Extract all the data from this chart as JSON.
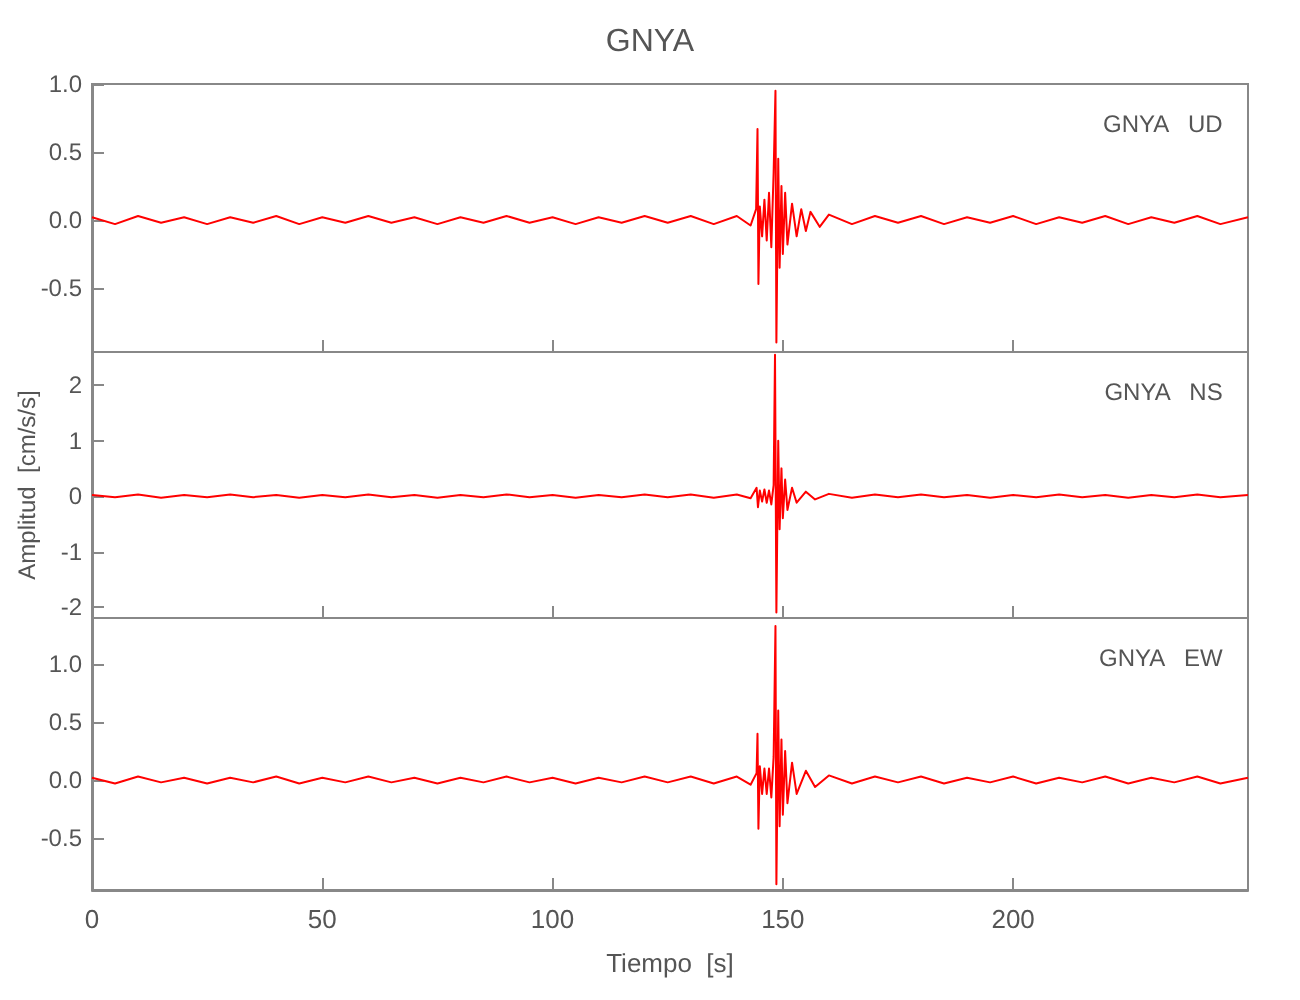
{
  "chart_data": [
    {
      "type": "line",
      "title": "GNYA",
      "annotations": [
        "GNYA   UD"
      ],
      "tick_labels": "y",
      "grid": false,
      "marker": "none",
      "line_style": "solid",
      "xlim": [
        0,
        251
      ],
      "xticks": [
        0,
        50,
        100,
        150,
        200
      ],
      "ylim": [
        -0.97,
        1.0
      ],
      "yticks": [
        {
          "value": -0.5,
          "label": "-0.5"
        },
        {
          "value": 0,
          "label": "0.0"
        },
        {
          "value": 0.5,
          "label": "0.5"
        },
        {
          "value": 1,
          "label": "1.0"
        }
      ],
      "series": [
        {
          "color": "#ff0000",
          "x": [
            0,
            5,
            10,
            15,
            20,
            25,
            30,
            35,
            40,
            45,
            50,
            55,
            60,
            65,
            70,
            75,
            80,
            85,
            90,
            95,
            100,
            105,
            110,
            115,
            120,
            125,
            130,
            135,
            140,
            143,
            144.2,
            144.5,
            144.7,
            145,
            145.5,
            146,
            146.5,
            147,
            147.5,
            148,
            148.4,
            148.6,
            149,
            149.3,
            149.7,
            150,
            150.5,
            151,
            152,
            153,
            154,
            155,
            156,
            158,
            160,
            165,
            170,
            175,
            180,
            185,
            190,
            195,
            200,
            205,
            210,
            215,
            220,
            225,
            230,
            235,
            240,
            245,
            251
          ],
          "values": [
            0.02,
            -0.03,
            0.03,
            -0.02,
            0.02,
            -0.03,
            0.02,
            -0.02,
            0.03,
            -0.03,
            0.02,
            -0.02,
            0.03,
            -0.02,
            0.02,
            -0.03,
            0.02,
            -0.02,
            0.03,
            -0.02,
            0.02,
            -0.03,
            0.02,
            -0.02,
            0.03,
            -0.02,
            0.03,
            -0.03,
            0.03,
            -0.04,
            0.08,
            0.67,
            -0.47,
            0.1,
            -0.12,
            0.15,
            -0.15,
            0.2,
            -0.2,
            0.35,
            0.95,
            -0.9,
            0.45,
            -0.35,
            0.25,
            -0.25,
            0.2,
            -0.18,
            0.12,
            -0.12,
            0.08,
            -0.08,
            0.06,
            -0.05,
            0.04,
            -0.03,
            0.03,
            -0.02,
            0.03,
            -0.03,
            0.02,
            -0.02,
            0.03,
            -0.03,
            0.02,
            -0.02,
            0.03,
            -0.03,
            0.02,
            -0.02,
            0.03,
            -0.03,
            0.02
          ]
        }
      ]
    },
    {
      "type": "line",
      "ylabel": "Amplitud  [cm/s/s]",
      "annotations": [
        "GNYA   NS"
      ],
      "tick_labels": "y",
      "grid": false,
      "marker": "none",
      "line_style": "solid",
      "xlim": [
        0,
        251
      ],
      "xticks": [
        0,
        50,
        100,
        150,
        200
      ],
      "ylim": [
        -2.2,
        2.6
      ],
      "yticks": [
        -2,
        -1,
        0,
        1,
        2
      ],
      "series": [
        {
          "color": "#ff0000",
          "x": [
            0,
            5,
            10,
            15,
            20,
            25,
            30,
            35,
            40,
            45,
            50,
            55,
            60,
            65,
            70,
            75,
            80,
            85,
            90,
            95,
            100,
            105,
            110,
            115,
            120,
            125,
            130,
            135,
            140,
            143,
            144.3,
            144.6,
            145,
            145.5,
            146,
            146.5,
            147,
            147.5,
            148,
            148.3,
            148.6,
            149,
            149.3,
            149.7,
            150,
            150.5,
            151,
            152,
            153,
            155,
            157,
            160,
            165,
            170,
            175,
            180,
            185,
            190,
            195,
            200,
            205,
            210,
            215,
            220,
            225,
            230,
            235,
            240,
            245,
            251
          ],
          "values": [
            0.02,
            -0.02,
            0.03,
            -0.03,
            0.02,
            -0.02,
            0.03,
            -0.02,
            0.02,
            -0.03,
            0.02,
            -0.02,
            0.03,
            -0.02,
            0.02,
            -0.03,
            0.02,
            -0.02,
            0.03,
            -0.02,
            0.02,
            -0.03,
            0.02,
            -0.02,
            0.03,
            -0.02,
            0.03,
            -0.03,
            0.03,
            -0.04,
            0.15,
            -0.2,
            0.1,
            -0.1,
            0.12,
            -0.12,
            0.1,
            -0.15,
            0.2,
            2.55,
            -2.1,
            1.0,
            -0.6,
            0.5,
            -0.4,
            0.3,
            -0.25,
            0.15,
            -0.12,
            0.08,
            -0.06,
            0.04,
            -0.03,
            0.03,
            -0.02,
            0.03,
            -0.02,
            0.02,
            -0.03,
            0.02,
            -0.02,
            0.03,
            -0.02,
            0.02,
            -0.03,
            0.02,
            -0.02,
            0.03,
            -0.02,
            0.02
          ]
        }
      ]
    },
    {
      "type": "line",
      "xlabel": "Tiempo  [s]",
      "annotations": [
        "GNYA   EW"
      ],
      "grid": false,
      "marker": "none",
      "line_style": "solid",
      "xlim": [
        0,
        251
      ],
      "xticks": [
        0,
        50,
        100,
        150,
        200
      ],
      "ylim": [
        -0.95,
        1.4
      ],
      "yticks": [
        {
          "value": -0.5,
          "label": "-0.5"
        },
        {
          "value": 0,
          "label": "0.0"
        },
        {
          "value": 0.5,
          "label": "0.5"
        },
        {
          "value": 1,
          "label": "1.0"
        }
      ],
      "series": [
        {
          "color": "#ff0000",
          "x": [
            0,
            5,
            10,
            15,
            20,
            25,
            30,
            35,
            40,
            45,
            50,
            55,
            60,
            65,
            70,
            75,
            80,
            85,
            90,
            95,
            100,
            105,
            110,
            115,
            120,
            125,
            130,
            135,
            140,
            143,
            144.3,
            144.5,
            144.7,
            145,
            145.5,
            146,
            146.5,
            147,
            147.5,
            148,
            148.4,
            148.6,
            149,
            149.3,
            149.7,
            150,
            150.5,
            151,
            152,
            153,
            155,
            157,
            160,
            165,
            170,
            175,
            180,
            185,
            190,
            195,
            200,
            205,
            210,
            215,
            220,
            225,
            230,
            235,
            240,
            245,
            251
          ],
          "values": [
            0.02,
            -0.03,
            0.03,
            -0.02,
            0.02,
            -0.03,
            0.02,
            -0.02,
            0.03,
            -0.03,
            0.02,
            -0.02,
            0.03,
            -0.02,
            0.02,
            -0.03,
            0.02,
            -0.02,
            0.03,
            -0.02,
            0.02,
            -0.03,
            0.02,
            -0.02,
            0.03,
            -0.02,
            0.03,
            -0.03,
            0.03,
            -0.04,
            0.06,
            0.4,
            -0.42,
            0.12,
            -0.12,
            0.1,
            -0.12,
            0.1,
            -0.15,
            0.2,
            1.33,
            -0.9,
            0.6,
            -0.4,
            0.35,
            -0.3,
            0.25,
            -0.2,
            0.15,
            -0.12,
            0.08,
            -0.06,
            0.04,
            -0.03,
            0.03,
            -0.02,
            0.03,
            -0.03,
            0.02,
            -0.02,
            0.03,
            -0.03,
            0.02,
            -0.02,
            0.03,
            -0.03,
            0.02,
            -0.02,
            0.03,
            -0.03,
            0.02
          ]
        }
      ]
    }
  ]
}
